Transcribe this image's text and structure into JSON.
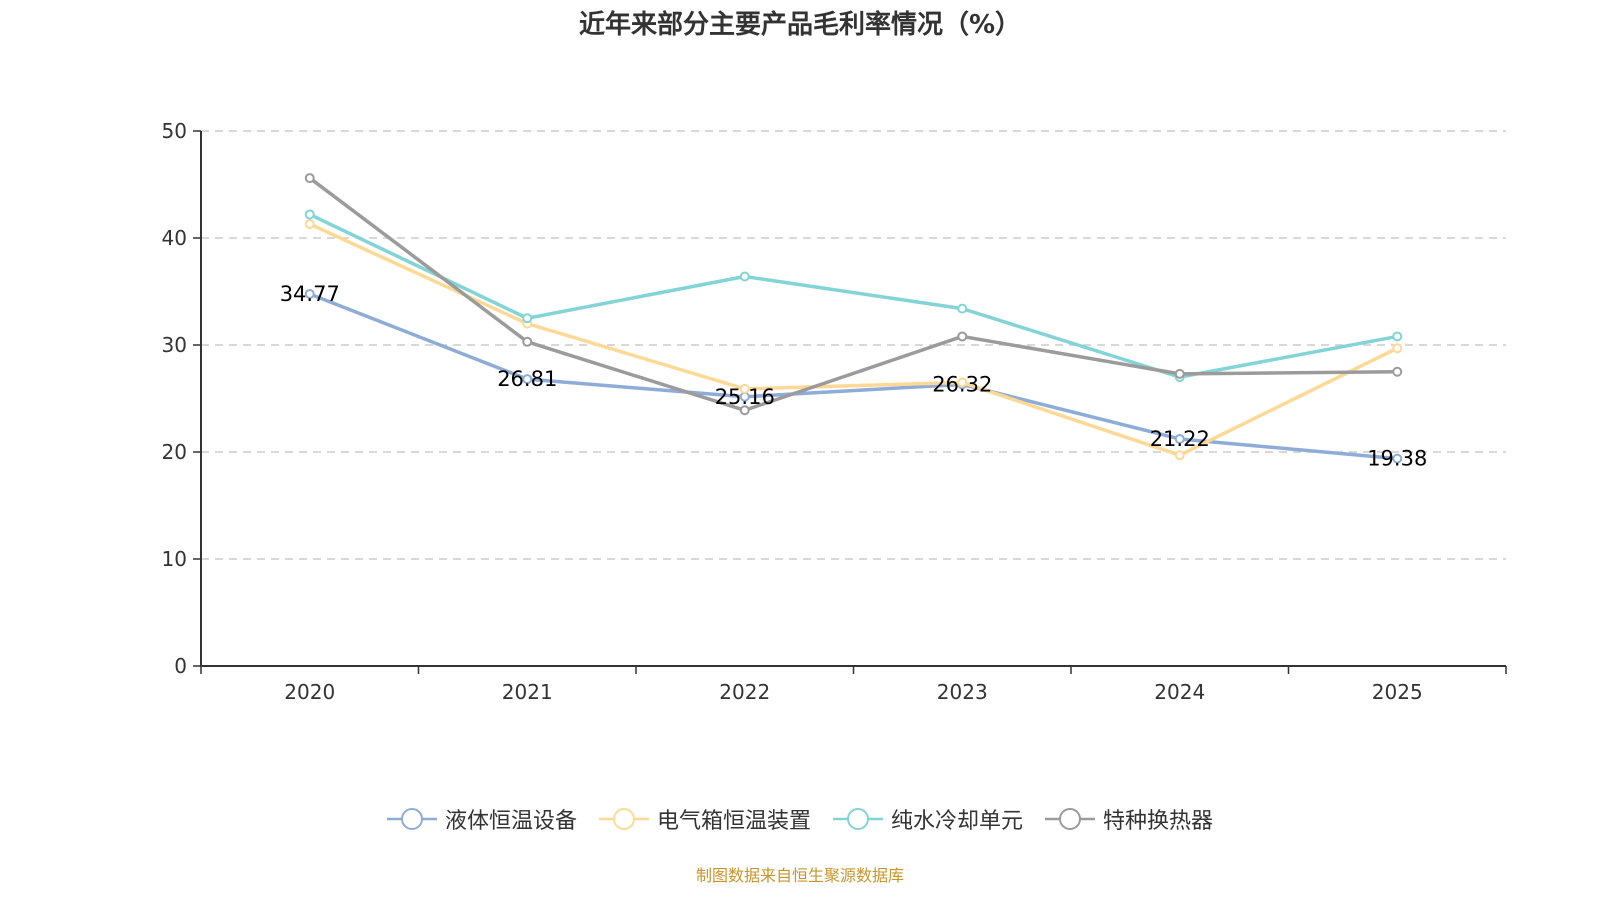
{
  "chart_data": {
    "type": "line",
    "title": "近年来部分主要产品毛利率情况（%）",
    "xlabel": "",
    "ylabel": "",
    "x": [
      "2020",
      "2021",
      "2022",
      "2023",
      "2024",
      "2025"
    ],
    "ylim": [
      0,
      50
    ],
    "yticks": [
      0,
      10,
      20,
      30,
      40,
      50
    ],
    "grid": true,
    "legend_position": "bottom",
    "series": [
      {
        "name": "液体恒温设备",
        "color": "#8eacd8",
        "values": [
          34.77,
          26.81,
          25.16,
          26.32,
          21.22,
          19.38
        ],
        "show_labels": true
      },
      {
        "name": "电气箱恒温装置",
        "color": "#fdd995",
        "values": [
          41.3,
          32.0,
          25.9,
          26.5,
          19.7,
          29.7
        ],
        "show_labels": false
      },
      {
        "name": "纯水冷却单元",
        "color": "#82d4d6",
        "values": [
          42.2,
          32.5,
          36.4,
          33.4,
          27.0,
          30.8
        ],
        "show_labels": false
      },
      {
        "name": "特种换热器",
        "color": "#9b9b9b",
        "values": [
          45.6,
          30.3,
          23.9,
          30.8,
          27.3,
          27.5
        ],
        "show_labels": false
      }
    ]
  },
  "source": "制图数据来自恒生聚源数据库"
}
